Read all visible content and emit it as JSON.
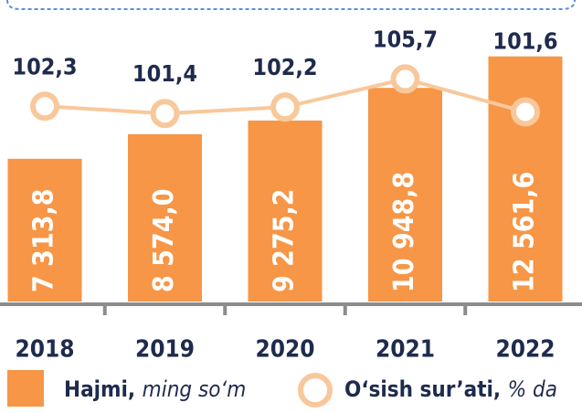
{
  "chart_data": {
    "type": "bar-line",
    "categories": [
      "2018",
      "2019",
      "2020",
      "2021",
      "2022"
    ],
    "series": [
      {
        "name": "Hajmi,",
        "unit": "ming so‘m",
        "type": "bar",
        "color": "#f79646",
        "axis": "y",
        "values": [
          7313.8,
          8574.0,
          9275.2,
          10948.8,
          12561.6
        ],
        "value_labels": [
          "7 313,8",
          "8 574,0",
          "9 275,2",
          "10 948,8",
          "12 561,6"
        ]
      },
      {
        "name": "O‘sish sur’ati,",
        "unit": "% da",
        "type": "line",
        "color": "#f8c89b",
        "axis": "y2",
        "values": [
          102.3,
          101.4,
          102.2,
          105.7,
          101.6
        ],
        "value_labels": [
          "102,3",
          "101,4",
          "102,2",
          "105,7",
          "101,6"
        ]
      }
    ],
    "ylim": [
      0,
      14000
    ],
    "y2lim": [
      78,
      112
    ],
    "grid": false
  }
}
